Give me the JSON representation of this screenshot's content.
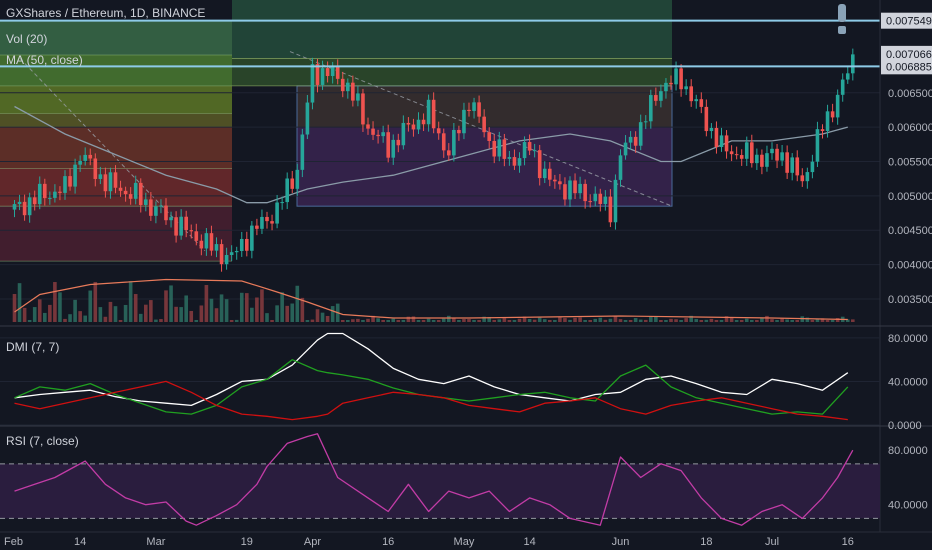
{
  "header": {
    "title": "GXShares / Ethereum, 1D, BINANCE",
    "vol_label": "Vol (20)",
    "ma_label": "MA (50, close)",
    "dmi_label": "DMI (7, 7)",
    "rsi_label": "RSI (7, close)"
  },
  "colors": {
    "background": "#131722",
    "up": "#26a69a",
    "down": "#ef5350",
    "ma": "#8a9ba8",
    "level_line": "#8ecbe8",
    "rsi": "#c23ca6",
    "rsi_band": "#2a1d3e",
    "dmi_adx": "#ffffff",
    "dmi_plus": "#20a020",
    "dmi_minus": "#d01010"
  },
  "chart_data": [
    {
      "type": "candlestick",
      "title": "GXShares / Ethereum, 1D, BINANCE",
      "ylim": [
        0.00315,
        0.00785
      ],
      "y_ticks": [
        "0.003500",
        "0.004000",
        "0.004500",
        "0.005000",
        "0.005500",
        "0.006000",
        "0.006500"
      ],
      "price_labels": [
        {
          "value": "0.007549",
          "emphasis": true
        },
        {
          "value": "0.007066",
          "emphasis": true
        },
        {
          "value": "0.006885",
          "emphasis": true
        }
      ],
      "horizontal_levels": [
        0.007549,
        0.006885
      ],
      "x_ticks": [
        {
          "label": "Feb",
          "day": 0
        },
        {
          "label": "14",
          "day": 13
        },
        {
          "label": "Mar",
          "day": 28
        },
        {
          "label": "19",
          "day": 46
        },
        {
          "label": "Apr",
          "day": 59
        },
        {
          "label": "16",
          "day": 74
        },
        {
          "label": "May",
          "day": 89
        },
        {
          "label": "14",
          "day": 102
        },
        {
          "label": "Jun",
          "day": 120
        },
        {
          "label": "18",
          "day": 137
        },
        {
          "label": "Jul",
          "day": 150
        },
        {
          "label": "16",
          "day": 165
        }
      ],
      "ma_series": {
        "name": "MA (50, close)",
        "values": [
          0.0063,
          0.0059,
          0.0056,
          0.0053,
          0.0051,
          0.0049,
          0.0049,
          0.0051,
          0.0052,
          0.0053,
          0.0056,
          0.0058,
          0.0059,
          0.0058,
          0.0055,
          0.0055,
          0.0058,
          0.0058,
          0.0059,
          0.006
        ]
      },
      "ma_days": [
        0,
        10,
        20,
        30,
        40,
        46,
        50,
        58,
        65,
        75,
        90,
        100,
        110,
        118,
        128,
        132,
        142,
        150,
        160,
        165
      ]
    },
    {
      "type": "bar",
      "title": "Vol (20)",
      "ma_values": [
        0.2,
        0.55,
        0.75,
        0.85,
        0.82,
        0.6,
        0.4,
        0.15,
        0.08,
        0.08,
        0.1,
        0.12,
        0.1,
        0.08,
        0.06,
        0.05
      ],
      "ma_days": [
        0,
        5,
        15,
        30,
        45,
        52,
        58,
        65,
        75,
        90,
        105,
        120,
        135,
        150,
        160,
        165
      ]
    },
    {
      "type": "line",
      "title": "DMI (7, 7)",
      "ylim": [
        0,
        90
      ],
      "y_ticks": [
        "80.0000",
        "40.0000",
        "0.0000"
      ],
      "days": [
        0,
        5,
        10,
        15,
        20,
        25,
        30,
        35,
        40,
        45,
        50,
        55,
        60,
        62,
        65,
        70,
        75,
        80,
        85,
        90,
        95,
        100,
        105,
        110,
        115,
        120,
        125,
        130,
        135,
        140,
        145,
        150,
        155,
        160,
        165
      ],
      "series": [
        {
          "name": "adx",
          "values": [
            25,
            28,
            30,
            32,
            26,
            22,
            20,
            18,
            28,
            40,
            42,
            55,
            78,
            84,
            84,
            70,
            52,
            42,
            38,
            45,
            35,
            28,
            25,
            22,
            28,
            30,
            42,
            45,
            38,
            30,
            28,
            42,
            38,
            32,
            48
          ]
        },
        {
          "name": "plus",
          "values": [
            25,
            35,
            32,
            38,
            28,
            20,
            12,
            10,
            18,
            35,
            42,
            60,
            50,
            48,
            46,
            42,
            34,
            28,
            25,
            22,
            25,
            28,
            30,
            25,
            22,
            45,
            55,
            35,
            25,
            20,
            15,
            10,
            12,
            10,
            35
          ]
        },
        {
          "name": "minus",
          "values": [
            20,
            15,
            20,
            25,
            30,
            35,
            40,
            30,
            18,
            10,
            8,
            5,
            8,
            10,
            20,
            25,
            30,
            28,
            25,
            18,
            15,
            12,
            20,
            22,
            25,
            15,
            10,
            18,
            22,
            25,
            20,
            15,
            10,
            8,
            5
          ]
        }
      ]
    },
    {
      "type": "line",
      "title": "RSI (7, close)",
      "ylim": [
        20,
        97
      ],
      "y_ticks": [
        "80.0000",
        "40.0000"
      ],
      "band": [
        30,
        70
      ],
      "days": [
        0,
        4,
        8,
        12,
        14,
        18,
        22,
        26,
        30,
        34,
        36,
        40,
        44,
        48,
        50,
        54,
        58,
        60,
        64,
        70,
        74,
        78,
        82,
        86,
        90,
        94,
        98,
        102,
        106,
        110,
        116,
        120,
        124,
        128,
        132,
        136,
        140,
        144,
        148,
        152,
        156,
        160,
        163,
        166
      ],
      "series": [
        {
          "name": "rsi",
          "values": [
            50,
            55,
            60,
            68,
            72,
            55,
            45,
            40,
            42,
            28,
            25,
            32,
            40,
            55,
            68,
            85,
            90,
            92,
            60,
            45,
            35,
            55,
            35,
            50,
            45,
            50,
            35,
            45,
            40,
            30,
            25,
            75,
            60,
            70,
            65,
            45,
            30,
            25,
            35,
            40,
            30,
            45,
            60,
            80
          ]
        }
      ]
    }
  ]
}
